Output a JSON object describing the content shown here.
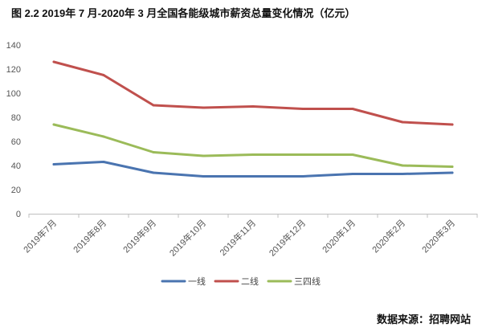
{
  "chart_data": {
    "type": "line",
    "title": "图 2.2   2019年 7 月-2020年 3 月全国各能级城市薪资总量变化情况（亿元）",
    "categories": [
      "2019年7月",
      "2019年8月",
      "2019年9月",
      "2019年10月",
      "2019年11月",
      "2019年12月",
      "2020年1月",
      "2020年2月",
      "2020年3月"
    ],
    "series": [
      {
        "name": "一线",
        "color": "#4a74b0",
        "values": [
          41,
          43,
          34,
          31,
          31,
          31,
          33,
          33,
          34
        ]
      },
      {
        "name": "二线",
        "color": "#c0504d",
        "values": [
          126,
          115,
          90,
          88,
          89,
          87,
          87,
          76,
          74
        ]
      },
      {
        "name": "三四线",
        "color": "#9bbb59",
        "values": [
          74,
          64,
          51,
          48,
          49,
          49,
          49,
          40,
          39
        ]
      }
    ],
    "ylim": [
      0,
      140
    ],
    "yticks": [
      0,
      20,
      40,
      60,
      80,
      100,
      120,
      140
    ],
    "grid": false,
    "legend_position": "bottom"
  },
  "source": "数据来源：招聘网站"
}
